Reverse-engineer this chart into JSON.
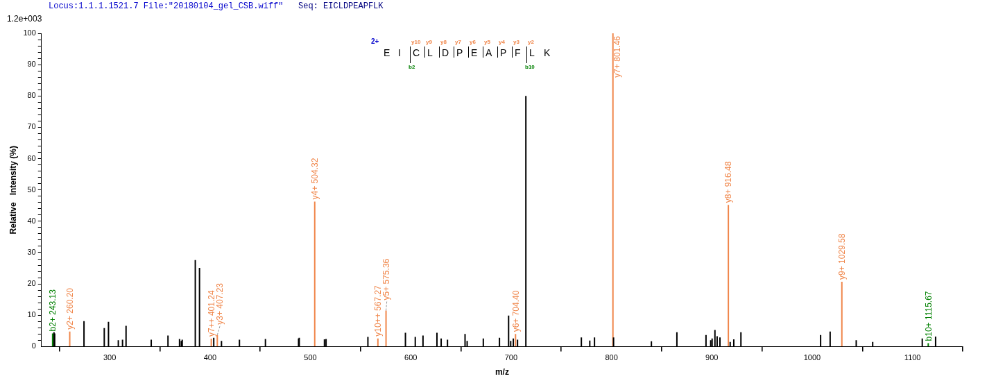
{
  "chart_data": {
    "type": "bar",
    "title": "Locus:1.1.1.1521.7 File:\"20180104_gel_CSB.wiff\"",
    "subtitle": "Seq: EICLDPEAPFLK",
    "xlabel": "m/z",
    "ylabel": "Relative   Intensity (%)",
    "annotations": [
      "1.2e+003",
      "2+",
      "E",
      "I",
      "C",
      "L",
      "D",
      "P",
      "E",
      "A",
      "P",
      "F",
      "L",
      "K",
      "y10",
      "y9",
      "y8",
      "y7",
      "y6",
      "y5",
      "y4",
      "y3",
      "y2",
      "b2",
      "b10"
    ],
    "xlim": [
      232,
      1150
    ],
    "xticks": [
      300,
      400,
      500,
      600,
      700,
      800,
      900,
      1000,
      1100
    ],
    "ylim": [
      0,
      100
    ],
    "yticks": [
      0,
      {
        "value": 2,
        "label": null
      },
      {
        "value": 4,
        "label": null
      },
      {
        "value": 6,
        "label": null
      },
      {
        "value": 8,
        "label": null
      },
      10,
      {
        "value": 12,
        "label": null
      },
      {
        "value": 14,
        "label": null
      },
      {
        "value": 16,
        "label": null
      },
      {
        "value": 18,
        "label": null
      },
      20,
      {
        "value": 22,
        "label": null
      },
      {
        "value": 24,
        "label": null
      },
      {
        "value": 26,
        "label": null
      },
      {
        "value": 28,
        "label": null
      },
      30,
      {
        "value": 32,
        "label": null
      },
      {
        "value": 34,
        "label": null
      },
      {
        "value": 36,
        "label": null
      },
      {
        "value": 38,
        "label": null
      },
      40,
      {
        "value": 42,
        "label": null
      },
      {
        "value": 44,
        "label": null
      },
      {
        "value": 46,
        "label": null
      },
      {
        "value": 48,
        "label": null
      },
      50,
      {
        "value": 52,
        "label": null
      },
      {
        "value": 54,
        "label": null
      },
      {
        "value": 56,
        "label": null
      },
      {
        "value": 58,
        "label": null
      },
      60,
      {
        "value": 62,
        "label": null
      },
      {
        "value": 64,
        "label": null
      },
      {
        "value": 66,
        "label": null
      },
      {
        "value": 68,
        "label": null
      },
      70,
      {
        "value": 72,
        "label": null
      },
      {
        "value": 74,
        "label": null
      },
      {
        "value": 76,
        "label": null
      },
      {
        "value": 78,
        "label": null
      },
      80,
      {
        "value": 82,
        "label": null
      },
      {
        "value": 84,
        "label": null
      },
      {
        "value": 86,
        "label": null
      },
      {
        "value": 88,
        "label": null
      },
      90,
      {
        "value": 92,
        "label": null
      },
      {
        "value": 94,
        "label": null
      },
      {
        "value": 96,
        "label": null
      },
      {
        "value": 98,
        "label": null
      },
      100
    ],
    "series": [
      {
        "color": "#000000",
        "x": [
          244.5,
          245.2,
          274.4,
          294.6,
          298.8,
          308.6,
          312.8,
          316.3,
          341.4,
          358.1,
          369.6,
          371.4,
          372.3,
          385.3,
          389.5,
          403.7,
          411.4,
          429.3,
          455.2,
          488.2,
          488.9,
          514.0,
          515.6,
          557.3,
          594.7,
          604.5,
          612.2,
          626.1,
          630.3,
          636.6,
          654.1,
          656.2,
          672.3,
          688.4,
          697.5,
          699.6,
          702.2,
          706.4,
          714.7,
          770.0,
          778.4,
          783.1,
          802.1,
          839.8,
          865.2,
          894.2,
          898.9,
          900.3,
          903.1,
          905.3,
          908.1,
          918.3,
          921.9,
          929.0,
          1008.4,
          1017.9,
          1043.9,
          1060.3,
          1109.7,
          1123.0
        ],
        "values": [
          4.6,
          4.2,
          8.1,
          5.9,
          7.9,
          2.0,
          2.2,
          6.6,
          2.2,
          3.5,
          2.4,
          1.8,
          2.2,
          27.6,
          25.1,
          2.8,
          1.8,
          2.2,
          2.4,
          2.6,
          2.8,
          2.3,
          2.4,
          3.1,
          4.4,
          3.1,
          3.5,
          4.4,
          2.6,
          2.2,
          4.0,
          1.8,
          2.6,
          2.8,
          9.9,
          1.8,
          2.6,
          2.2,
          80.0,
          2.9,
          1.9,
          2.9,
          2.9,
          1.7,
          4.6,
          3.7,
          2.0,
          2.6,
          5.3,
          3.3,
          2.9,
          1.5,
          2.3,
          4.6,
          3.7,
          4.8,
          2.0,
          1.5,
          2.6,
          3.2
        ]
      },
      {
        "color": "#f0864a",
        "x": [
          260.2,
          401.24,
          407.23,
          504.32,
          567.27,
          575.36,
          704.4,
          801.46,
          916.48,
          1029.58
        ],
        "values": [
          4.8,
          2.5,
          3.7,
          46.3,
          2.6,
          11.5,
          4.0,
          100,
          45.2,
          20.7
        ],
        "value_labels": [
          "y2+ 260.20",
          "y7++ 401.24",
          "y3+ 407.23",
          "y4+ 504.32",
          "y10++ 567.27",
          "y5+ 575.36",
          "y6+ 704.40",
          "y7+ 801.46",
          "y8+ 916.48",
          "y9+ 1029.58"
        ]
      },
      {
        "color": "#008000",
        "x": [
          243.13,
          1115.67
        ],
        "values": [
          4.2,
          1.1
        ],
        "value_labels": [
          "b2+ 243.13",
          "b10+ 1115.67"
        ]
      }
    ]
  }
}
